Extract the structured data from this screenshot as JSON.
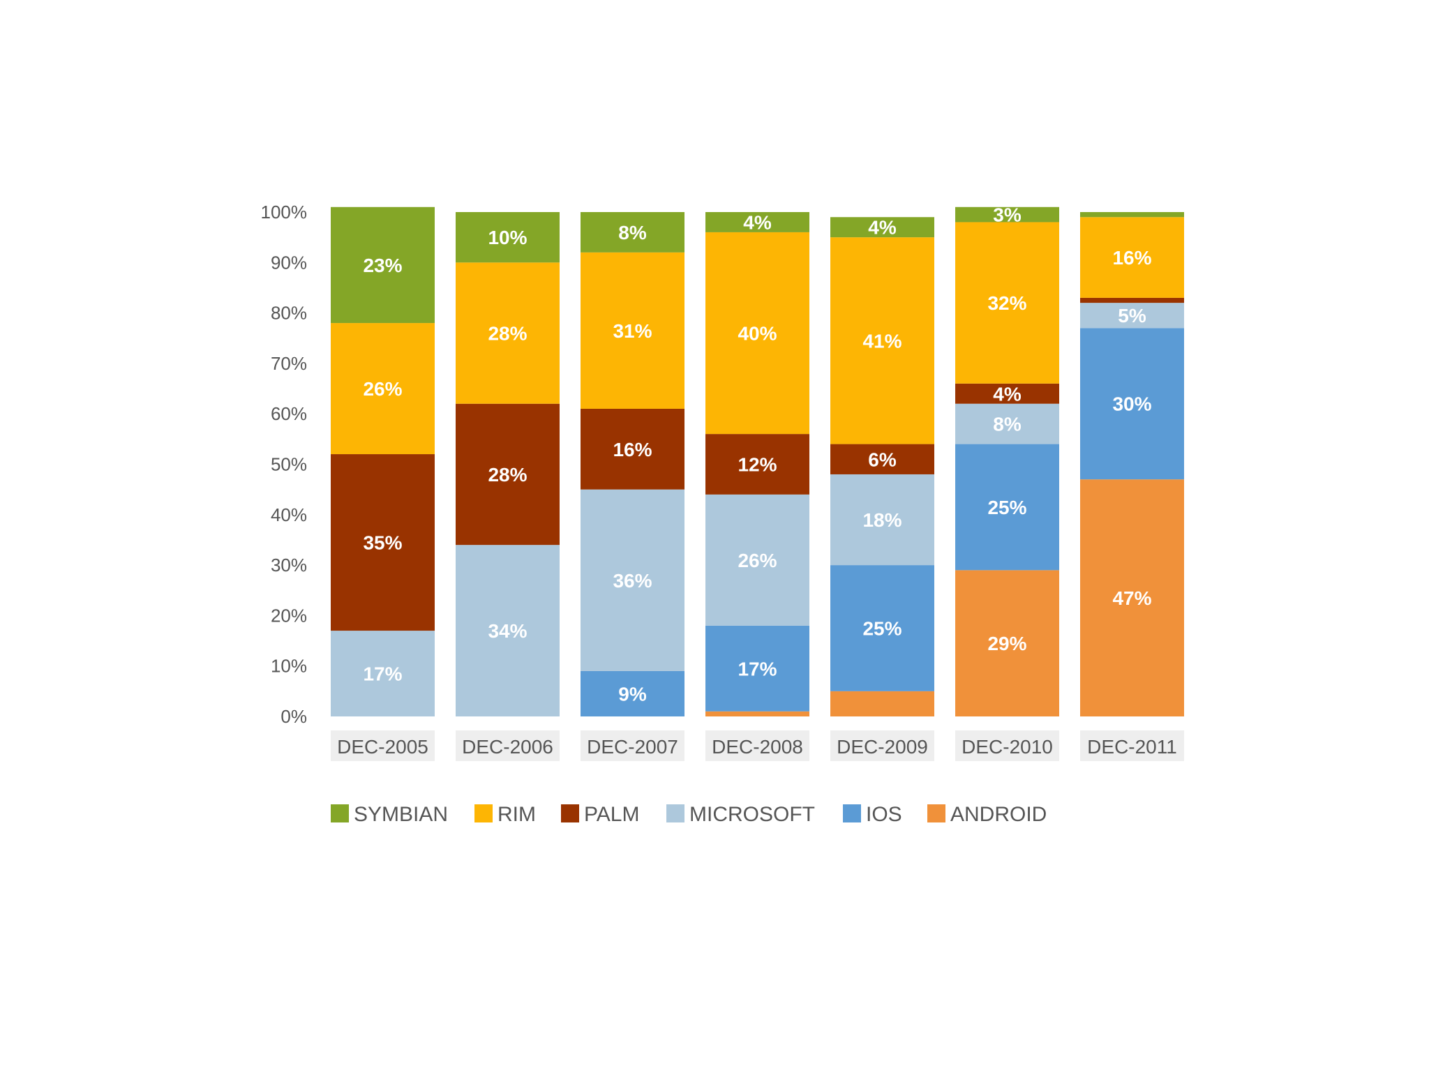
{
  "chart_data": {
    "type": "bar",
    "stacked": true,
    "percent_stacked": true,
    "categories": [
      "DEC-2005",
      "DEC-2006",
      "DEC-2007",
      "DEC-2008",
      "DEC-2009",
      "DEC-2010",
      "DEC-2011"
    ],
    "y_ticks": [
      "0%",
      "10%",
      "20%",
      "30%",
      "40%",
      "50%",
      "60%",
      "70%",
      "80%",
      "90%",
      "100%"
    ],
    "ylim": [
      0,
      100
    ],
    "legend_position": "bottom",
    "series": [
      {
        "name": "ANDROID",
        "color": "#F0913A",
        "values": [
          0,
          0,
          0,
          1,
          5,
          29,
          47
        ],
        "labels": [
          "",
          "",
          "",
          "",
          "",
          "29%",
          "47%"
        ]
      },
      {
        "name": "IOS",
        "color": "#5B9BD5",
        "values": [
          0,
          0,
          9,
          17,
          25,
          25,
          30
        ],
        "labels": [
          "",
          "",
          "9%",
          "17%",
          "25%",
          "25%",
          "30%"
        ]
      },
      {
        "name": "MICROSOFT",
        "color": "#ADC8DC",
        "values": [
          17,
          34,
          36,
          26,
          18,
          8,
          5
        ],
        "labels": [
          "17%",
          "34%",
          "36%",
          "26%",
          "18%",
          "8%",
          "5%"
        ]
      },
      {
        "name": "PALM",
        "color": "#993300",
        "values": [
          35,
          28,
          16,
          12,
          6,
          4,
          1
        ],
        "labels": [
          "35%",
          "28%",
          "16%",
          "12%",
          "6%",
          "4%",
          ""
        ]
      },
      {
        "name": "RIM",
        "color": "#FDB504",
        "values": [
          26,
          28,
          31,
          40,
          41,
          32,
          16
        ],
        "labels": [
          "26%",
          "28%",
          "31%",
          "40%",
          "41%",
          "32%",
          "16%"
        ]
      },
      {
        "name": "SYMBIAN",
        "color": "#84A627",
        "values": [
          23,
          10,
          8,
          4,
          4,
          3,
          1
        ],
        "labels": [
          "23%",
          "10%",
          "8%",
          "4%",
          "4%",
          "3%",
          ""
        ]
      }
    ],
    "legend_order": [
      "SYMBIAN",
      "RIM",
      "PALM",
      "MICROSOFT",
      "IOS",
      "ANDROID"
    ]
  }
}
